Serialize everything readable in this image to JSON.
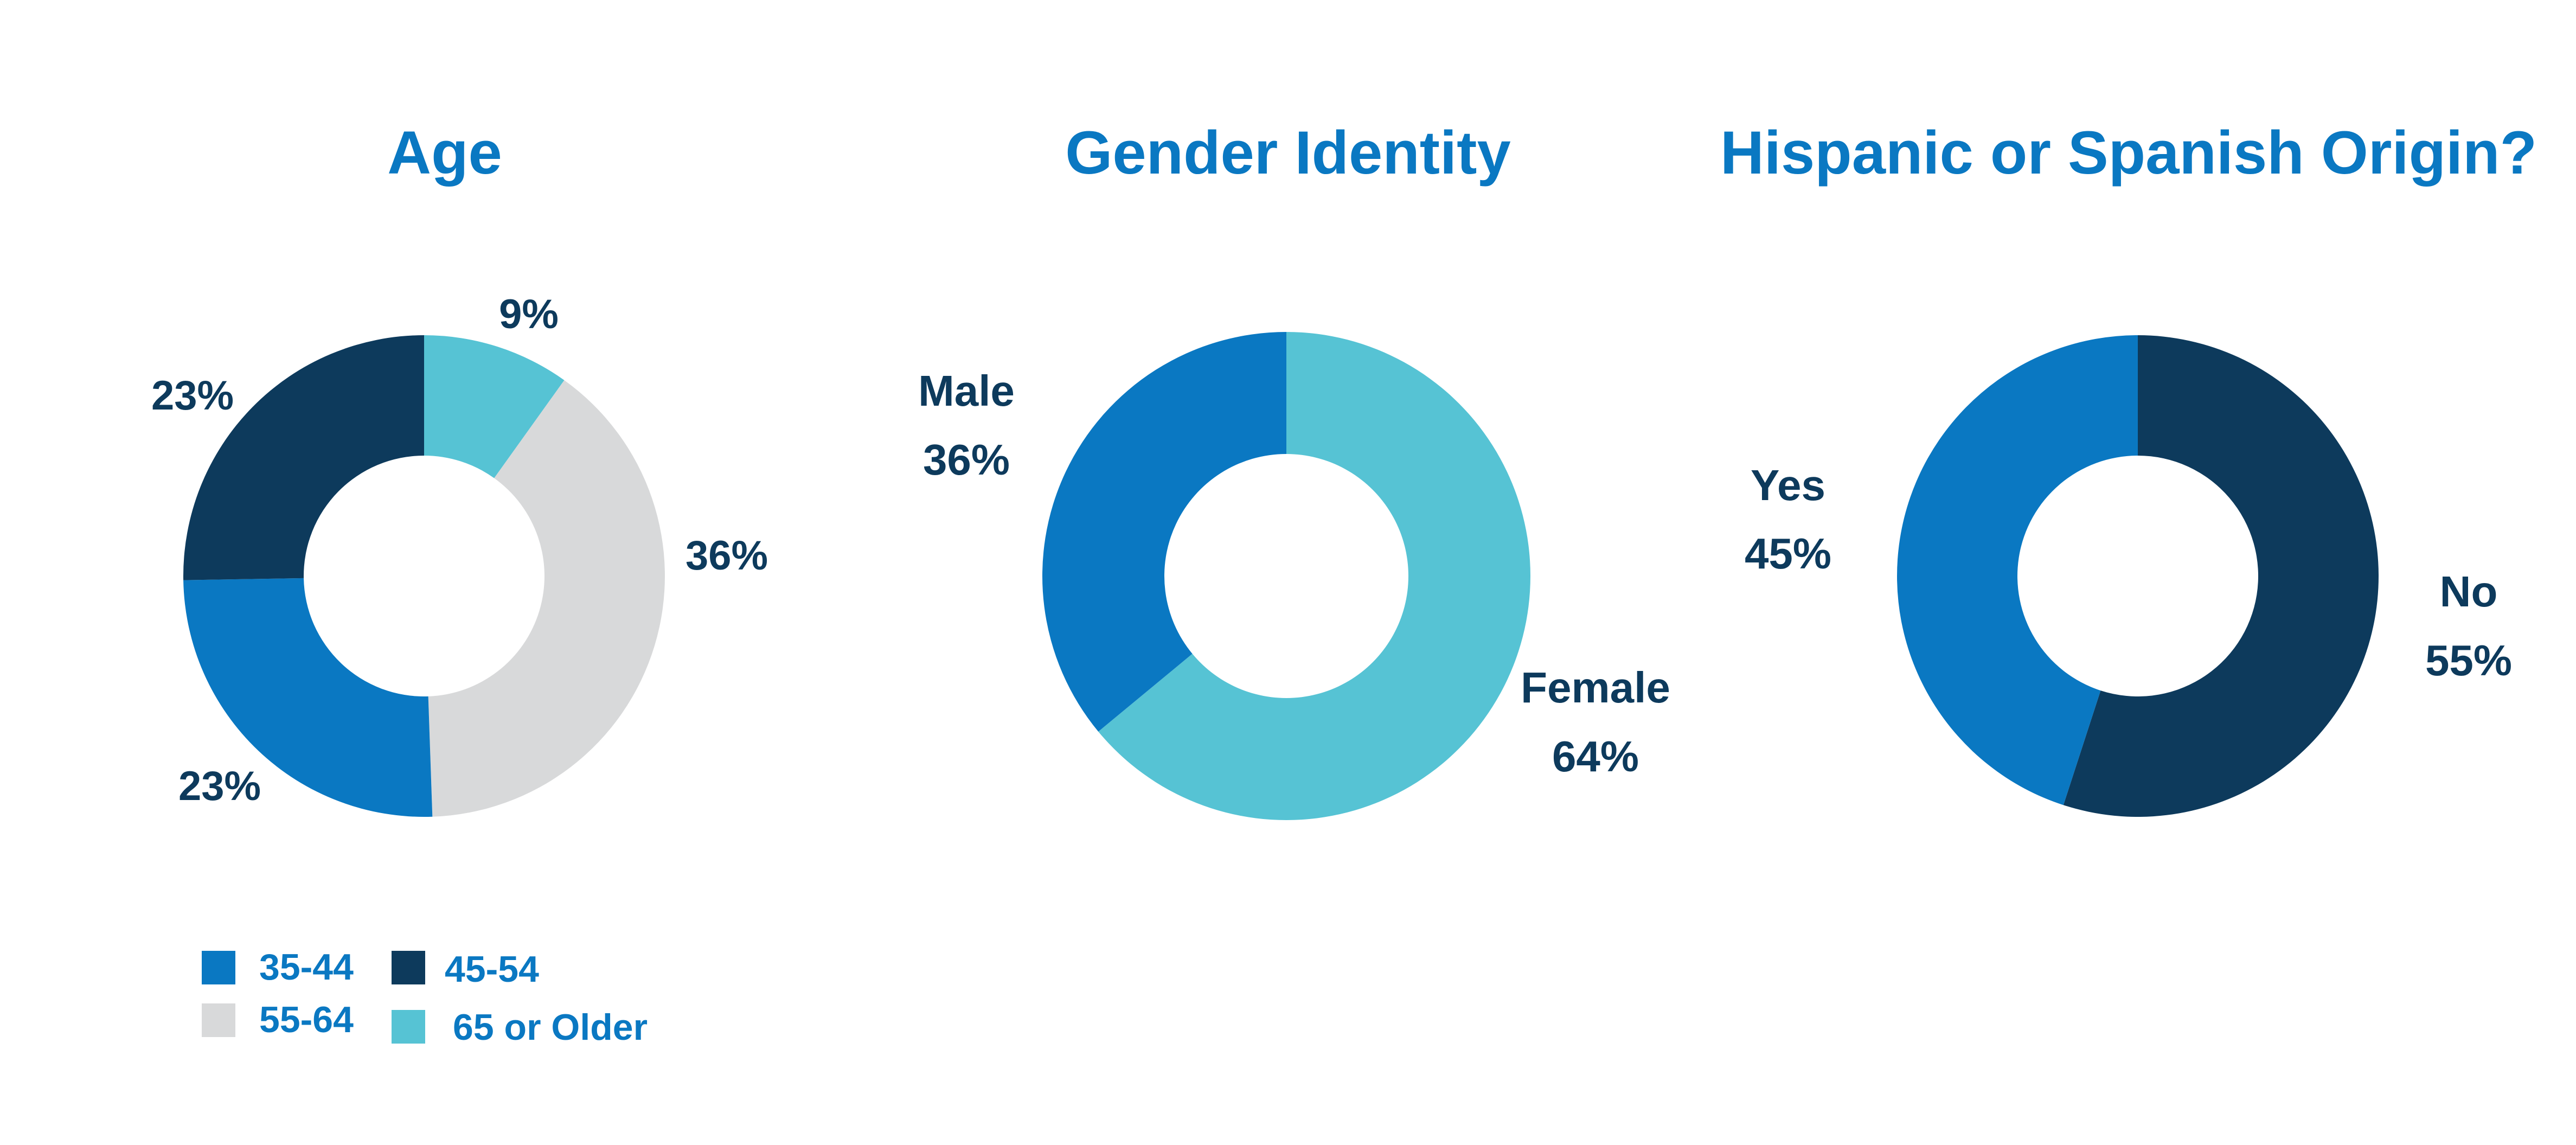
{
  "colors": {
    "title": "#0a78c2",
    "label": "#0d3a5c",
    "blue": "#0a78c2",
    "navy": "#0d3a5c",
    "gray": "#d8d9da",
    "teal": "#56c3d4"
  },
  "chart_data": [
    {
      "type": "pie",
      "title": "Age",
      "slices": [
        {
          "label": "65 or Older",
          "value": 9,
          "display": "9%",
          "color": "#56c3d4"
        },
        {
          "label": "55-64",
          "value": 36,
          "display": "36%",
          "color": "#d8d9da"
        },
        {
          "label": "35-44",
          "value": 23,
          "display": "23%",
          "color": "#0a78c2"
        },
        {
          "label": "45-54",
          "value": 23,
          "display": "23%",
          "color": "#0d3a5c"
        }
      ],
      "legend": [
        {
          "label": "35-44",
          "color": "#0a78c2"
        },
        {
          "label": "45-54",
          "color": "#0d3a5c"
        },
        {
          "label": "55-64",
          "color": "#d8d9da"
        },
        {
          "label": "65 or Older",
          "color": "#56c3d4"
        }
      ]
    },
    {
      "type": "pie",
      "title": "Gender Identity",
      "slices": [
        {
          "label": "Female",
          "value": 64,
          "display": "64%",
          "color": "#56c3d4"
        },
        {
          "label": "Male",
          "value": 36,
          "display": "36%",
          "color": "#0a78c2"
        }
      ]
    },
    {
      "type": "pie",
      "title": "Hispanic or Spanish Origin?",
      "slices": [
        {
          "label": "No",
          "value": 55,
          "display": "55%",
          "color": "#0d3a5c"
        },
        {
          "label": "Yes",
          "value": 45,
          "display": "45%",
          "color": "#0a78c2"
        }
      ]
    }
  ]
}
